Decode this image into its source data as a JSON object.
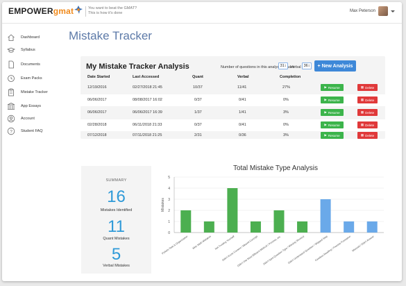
{
  "topbar": {
    "logo_main": "EMPOWER",
    "logo_accent": "gmat",
    "tagline_1": "You want to beat the GMAT?",
    "tagline_2": "This is how it's done",
    "user_name": "Max Peterson"
  },
  "sidebar": {
    "items": [
      {
        "label": "Dashboard",
        "icon": "home-icon"
      },
      {
        "label": "Syllabus",
        "icon": "graduation-cap-icon"
      },
      {
        "label": "Documents",
        "icon": "document-icon"
      },
      {
        "label": "Exam Packs",
        "icon": "exam-clock-icon"
      },
      {
        "label": "Mistake Tracker",
        "icon": "clipboard-icon"
      },
      {
        "label": "App Essays",
        "icon": "building-icon"
      },
      {
        "label": "Account",
        "icon": "account-icon"
      },
      {
        "label": "Student FAQ",
        "icon": "question-icon"
      }
    ]
  },
  "page": {
    "title": "Mistake Tracker"
  },
  "analysis": {
    "title": "My Mistake Tracker Analysis",
    "questions_label": "Number of questions in this analysis: Quant",
    "quant_value": "31",
    "verbal_label": "Verbal",
    "verbal_value": "36",
    "new_button": "+ New Analysis",
    "headers": [
      "Date Started",
      "Last Accessed",
      "Quant",
      "Verbal",
      "Completion"
    ],
    "resume_label": "Resume",
    "delete_label": "Delete",
    "rows": [
      {
        "started": "12/19/2016",
        "accessed": "02/27/2018 21:45",
        "quant": "10/37",
        "verbal": "11/41",
        "completion": "27%"
      },
      {
        "started": "06/06/2017",
        "accessed": "08/08/2017 16:02",
        "quant": "0/37",
        "verbal": "0/41",
        "completion": "0%"
      },
      {
        "started": "06/06/2017",
        "accessed": "06/06/2017 16:39",
        "quant": "1/37",
        "verbal": "1/41",
        "completion": "3%"
      },
      {
        "started": "02/28/2018",
        "accessed": "06/11/2018 21:33",
        "quant": "0/37",
        "verbal": "0/41",
        "completion": "0%"
      },
      {
        "started": "07/12/2018",
        "accessed": "07/11/2018 21:25",
        "quant": "2/31",
        "verbal": "0/36",
        "completion": "3%"
      }
    ]
  },
  "summary": {
    "label": "SUMMARY",
    "total": "16",
    "total_label": "Mistakes Identified",
    "quant": "11",
    "quant_label": "Quant Mistakes",
    "verbal": "5",
    "verbal_label": "Verbal Mistakes"
  },
  "chart_data": {
    "type": "bar",
    "title": "Total Mistake Type Analysis",
    "ylabel": "Mistakes",
    "ylim": [
      0,
      5
    ],
    "yticks": [
      0,
      1,
      2,
      3,
      4,
      5
    ],
    "categories": [
      "Pickets Task & Organization",
      "Misc Math Mistakes",
      "Not Trusting Yourself",
      "Didn't Know Content / Missed Concept",
      "Didn't Use Most Efficient Method / Process, etc.",
      "Didn't Spot Question Type / Missing Shortcut",
      "Didn't Understand Question / Skipped Step",
      "Careless Reading / Premise Formation",
      "Misread / Didn't Answer"
    ],
    "values": [
      2,
      1,
      4,
      1,
      2,
      1,
      3,
      1,
      1
    ],
    "bar_colors": [
      "#4caf50",
      "#4caf50",
      "#4caf50",
      "#4caf50",
      "#4caf50",
      "#4caf50",
      "#6aa9e9",
      "#6aa9e9",
      "#6aa9e9"
    ],
    "colors": {
      "quant": "#4caf50",
      "verbal": "#6aa9e9"
    }
  }
}
